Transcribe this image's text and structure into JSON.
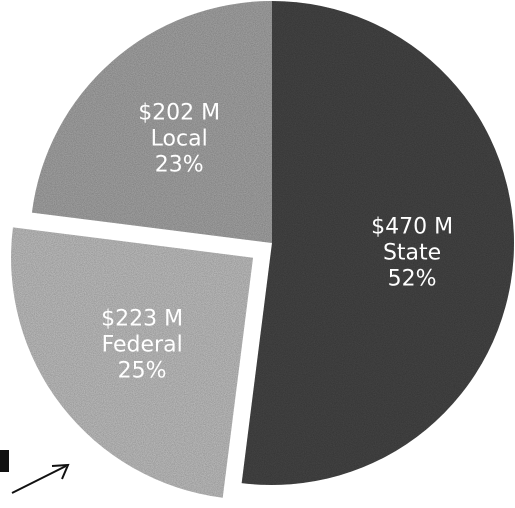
{
  "chart_data": {
    "type": "pie",
    "slices": [
      {
        "name": "State",
        "amount": "$470 M",
        "percent": "52%",
        "value": 52,
        "color": "#4a4a4a",
        "text_color": "#ffffff"
      },
      {
        "name": "Federal",
        "amount": "$223 M",
        "percent": "25%",
        "value": 25,
        "color": "#c4c4c4",
        "text_color": "#ffffff"
      },
      {
        "name": "Local",
        "amount": "$202 M",
        "percent": "23%",
        "value": 23,
        "color": "#a9a9a9",
        "text_color": "#ffffff"
      }
    ],
    "exploded_slice": "Federal"
  }
}
